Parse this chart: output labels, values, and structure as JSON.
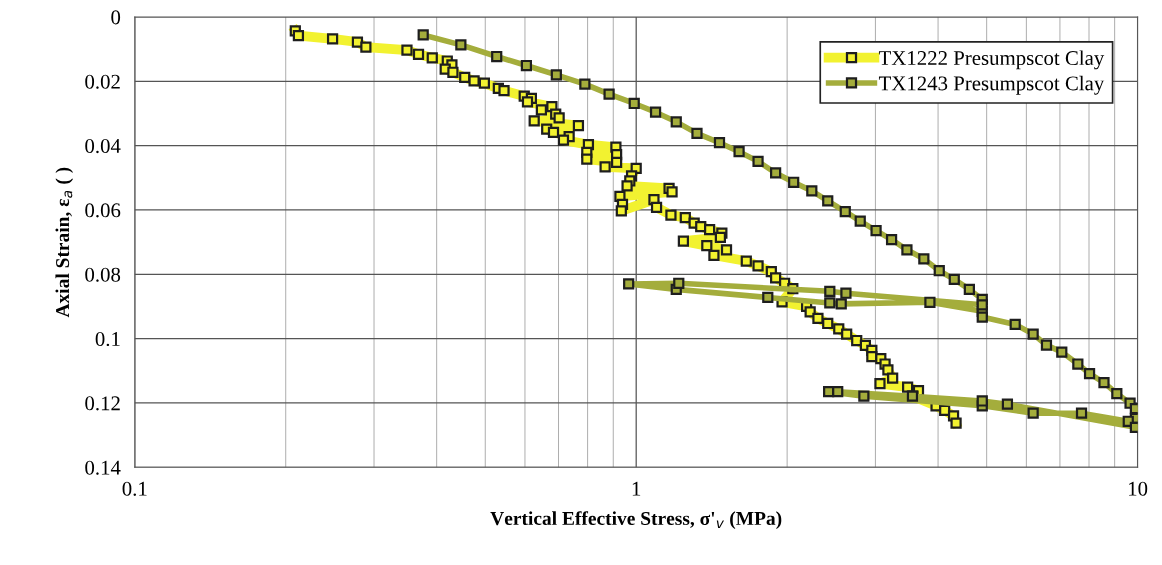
{
  "chart_data": {
    "type": "line",
    "xlabel": "Vertical Effective Stress, σ'$_{v}$ (MPa)",
    "ylabel": "Axial Strain, ε$_{a}$ ( )",
    "log": "x",
    "xlim": [
      0.1,
      10
    ],
    "xticks": [
      0.1,
      1,
      10
    ],
    "ylim": [
      0.14,
      0
    ],
    "yticks": [
      0,
      0.02,
      0.04,
      0.06,
      0.08,
      0.1,
      0.12,
      0.14
    ],
    "grid": true,
    "legend": "top right",
    "marker": "square",
    "line_style": "solid",
    "series": [
      {
        "name": "TX1222 Presumpscot Clay",
        "color": "#f2f230",
        "x": [
          0.209,
          0.212,
          0.248,
          0.278,
          0.289,
          0.349,
          0.368,
          0.392,
          0.42,
          0.429,
          0.416,
          0.431,
          0.455,
          0.475,
          0.498,
          0.531,
          0.545,
          0.598,
          0.618,
          0.607,
          0.679,
          0.647,
          0.691,
          0.702,
          0.626,
          0.767,
          0.663,
          0.684,
          0.735,
          0.716,
          0.803,
          0.911,
          0.797,
          0.914,
          0.797,
          0.914,
          0.867,
          1.0,
          0.979,
          0.971,
          0.959,
          1.163,
          1.179,
          0.928,
          0.939,
          0.934,
          1.085,
          1.098,
          1.173,
          1.253,
          1.305,
          1.345,
          1.401,
          1.482,
          1.472,
          1.242,
          1.383,
          1.514,
          1.429,
          1.658,
          1.75,
          1.86,
          1.897,
          1.977,
          2.053,
          1.954,
          2.187,
          2.223,
          2.304,
          2.41,
          2.535,
          2.629,
          2.753,
          2.865,
          2.951,
          2.951,
          3.075,
          3.136,
          3.177,
          3.247,
          3.063,
          3.478,
          3.656,
          3.565,
          3.963,
          4.123,
          4.295,
          4.345
        ],
        "values": [
          0.0043,
          0.0058,
          0.0068,
          0.0078,
          0.0094,
          0.0103,
          0.0116,
          0.0127,
          0.0137,
          0.0149,
          0.0162,
          0.0172,
          0.0188,
          0.0199,
          0.0206,
          0.0222,
          0.0229,
          0.0246,
          0.0253,
          0.0264,
          0.0279,
          0.0289,
          0.0302,
          0.0314,
          0.0323,
          0.0338,
          0.0349,
          0.0359,
          0.0372,
          0.0383,
          0.0397,
          0.0405,
          0.0421,
          0.0428,
          0.0442,
          0.0452,
          0.0466,
          0.0471,
          0.0494,
          0.051,
          0.0525,
          0.0533,
          0.0544,
          0.0558,
          0.0583,
          0.0603,
          0.0568,
          0.0592,
          0.0616,
          0.0624,
          0.0641,
          0.0652,
          0.0661,
          0.0672,
          0.0685,
          0.0697,
          0.0711,
          0.0724,
          0.0741,
          0.0759,
          0.0774,
          0.0792,
          0.0811,
          0.0828,
          0.0845,
          0.0886,
          0.09,
          0.0917,
          0.0937,
          0.0953,
          0.097,
          0.0986,
          0.1006,
          0.1021,
          0.1037,
          0.1056,
          0.1062,
          0.1079,
          0.1097,
          0.1123,
          0.114,
          0.1151,
          0.1162,
          0.1179,
          0.1209,
          0.1223,
          0.124,
          0.1263
        ]
      },
      {
        "name": "TX1243 Presumpscot Clay",
        "color": "#a4ad3c",
        "x": [
          0.376,
          0.447,
          0.527,
          0.604,
          0.693,
          0.79,
          0.883,
          0.991,
          1.093,
          1.202,
          1.322,
          1.466,
          1.604,
          1.75,
          1.897,
          2.061,
          2.24,
          2.41,
          2.612,
          2.798,
          3.009,
          3.231,
          3.467,
          3.747,
          4.022,
          4.309,
          4.618,
          4.9,
          4.9,
          3.853,
          2.564,
          2.433,
          1.83,
          1.202,
          0.966,
          1.216,
          2.433,
          2.62,
          4.9,
          4.9,
          5.7,
          6.19,
          6.58,
          7.06,
          7.6,
          8.02,
          8.57,
          9.09,
          9.66,
          9.9,
          9.9,
          9.58,
          7.73,
          6.19,
          4.9,
          2.845,
          2.42,
          2.523,
          3.556,
          4.9,
          5.5,
          9.9
        ],
        "values": [
          0.0056,
          0.0087,
          0.0123,
          0.0151,
          0.018,
          0.0209,
          0.024,
          0.0269,
          0.0296,
          0.0326,
          0.0362,
          0.0391,
          0.0419,
          0.0449,
          0.0485,
          0.0514,
          0.0541,
          0.0572,
          0.0605,
          0.0635,
          0.0664,
          0.0692,
          0.0724,
          0.0752,
          0.0789,
          0.0816,
          0.0847,
          0.0878,
          0.0915,
          0.0887,
          0.0892,
          0.0889,
          0.0872,
          0.0847,
          0.083,
          0.0828,
          0.0853,
          0.0859,
          0.0895,
          0.0933,
          0.0956,
          0.0986,
          0.102,
          0.1042,
          0.1079,
          0.1109,
          0.1137,
          0.1171,
          0.1201,
          0.1218,
          0.1248,
          0.1257,
          0.1232,
          0.1232,
          0.1209,
          0.1179,
          0.1165,
          0.1165,
          0.1179,
          0.1194,
          0.1204,
          0.1276
        ]
      }
    ]
  }
}
